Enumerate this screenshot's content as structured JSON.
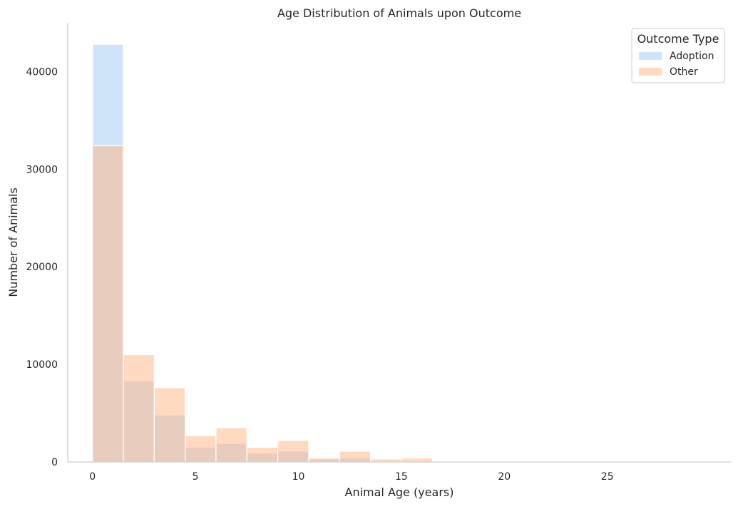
{
  "chart_data": {
    "type": "bar",
    "title": "Age Distribution of Animals upon Outcome",
    "xlabel": "Animal Age (years)",
    "ylabel": "Number of Animals",
    "xlim": [
      -1.2,
      31.0
    ],
    "ylim": [
      0,
      45000
    ],
    "x_ticks": [
      0,
      5,
      10,
      15,
      20,
      25
    ],
    "y_ticks": [
      0,
      10000,
      20000,
      30000,
      40000
    ],
    "bin_edges": [
      0,
      1.5,
      3.0,
      4.5,
      6.0,
      7.5,
      9.0,
      10.5,
      12.0,
      13.5,
      15.0,
      16.5
    ],
    "grid": false,
    "legend": {
      "title": "Outcome Type",
      "placement": "top-right"
    },
    "series": [
      {
        "name": "Adoption",
        "color": "#a1c9f4",
        "values": [
          42800,
          8300,
          4800,
          1500,
          1900,
          900,
          1100,
          300,
          400,
          0,
          0
        ]
      },
      {
        "name": "Other",
        "color": "#ffb482",
        "values": [
          32400,
          11000,
          7600,
          2700,
          3500,
          1500,
          2200,
          400,
          1100,
          300,
          400
        ]
      }
    ]
  }
}
